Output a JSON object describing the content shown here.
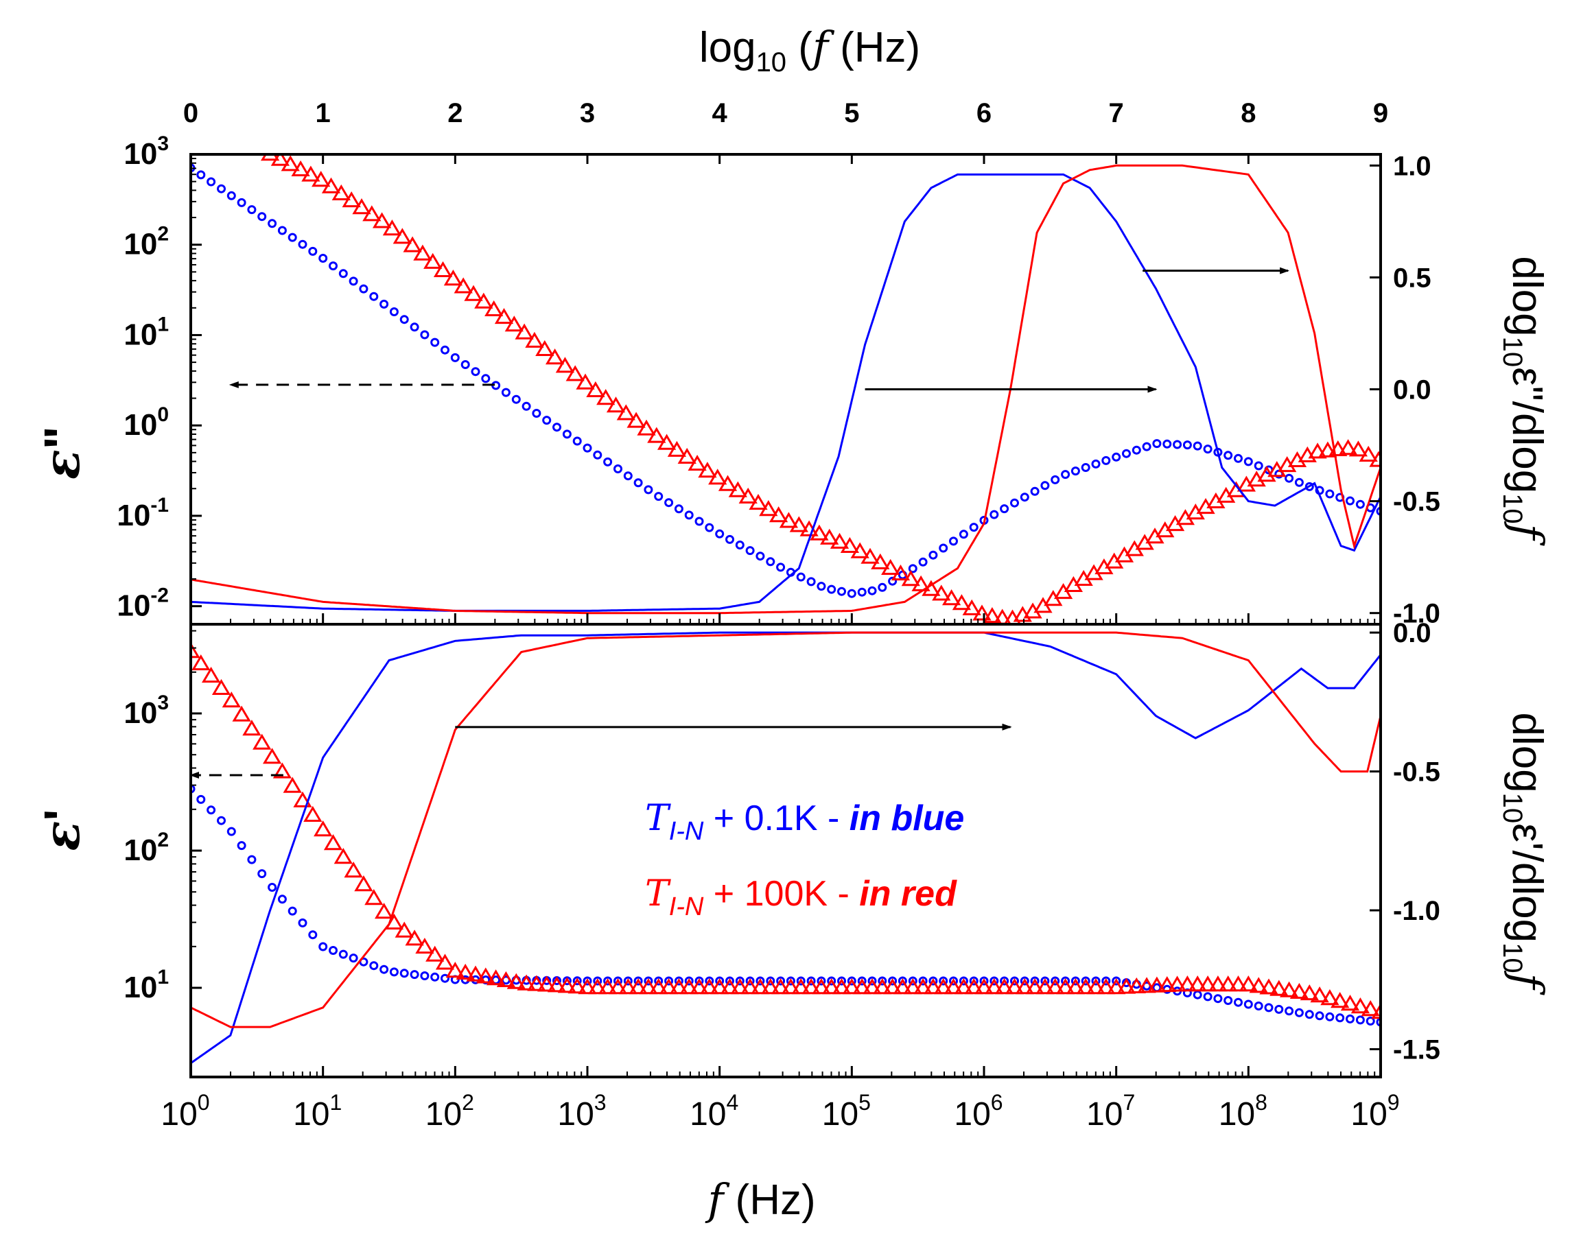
{
  "chart_data": {
    "type": "scatter",
    "colors": {
      "blue": "#0000ff",
      "red": "#ff0000",
      "axis": "#000000"
    },
    "top_axis": {
      "label_prefix": "log",
      "label_sub": "10",
      "label_paren_open": " (",
      "label_f": "f",
      "label_rest": "   (Hz)",
      "ticks": [
        "0",
        "1",
        "2",
        "3",
        "4",
        "5",
        "6",
        "7",
        "8",
        "9"
      ]
    },
    "bottom_axis": {
      "label_f": "f",
      "label_rest": "   (Hz)",
      "ticks": [
        {
          "base": "10",
          "exp": "0"
        },
        {
          "base": "10",
          "exp": "1"
        },
        {
          "base": "10",
          "exp": "2"
        },
        {
          "base": "10",
          "exp": "3"
        },
        {
          "base": "10",
          "exp": "4"
        },
        {
          "base": "10",
          "exp": "5"
        },
        {
          "base": "10",
          "exp": "6"
        },
        {
          "base": "10",
          "exp": "7"
        },
        {
          "base": "10",
          "exp": "8"
        },
        {
          "base": "10",
          "exp": "9"
        }
      ],
      "xlim_log10": [
        0,
        9
      ]
    },
    "panels": [
      {
        "name": "upper",
        "left_ylabel": "ε\"",
        "left_ylabel_symbol": "ε",
        "left_ylabel_mark": "\"",
        "left_ylim_log10": [
          -2.2,
          3.0
        ],
        "left_ticks": [
          {
            "base": "10",
            "exp": "3",
            "log": 3
          },
          {
            "base": "10",
            "exp": "2",
            "log": 2
          },
          {
            "base": "10",
            "exp": "1",
            "log": 1
          },
          {
            "base": "10",
            "exp": "0",
            "log": 0
          },
          {
            "base": "10",
            "exp": "-1",
            "log": -1
          },
          {
            "base": "10",
            "exp": "-2",
            "log": -2
          }
        ],
        "right_ylabel_parts": [
          "dlog",
          "10",
          "ε\"/dlog",
          "10",
          "f"
        ],
        "right_ylim": [
          -1.05,
          1.05
        ],
        "right_ticks": [
          "1.0",
          "0.5",
          "0.0",
          "-0.5",
          "-1.0"
        ],
        "right_tick_values": [
          1.0,
          0.5,
          0.0,
          -0.5,
          -1.0
        ]
      },
      {
        "name": "lower",
        "left_ylabel": "ε'",
        "left_ylabel_symbol": "ε",
        "left_ylabel_mark": "'",
        "left_ylim_log10": [
          0.35,
          3.65
        ],
        "left_ticks": [
          {
            "base": "10",
            "exp": "3",
            "log": 3
          },
          {
            "base": "10",
            "exp": "2",
            "log": 2
          },
          {
            "base": "10",
            "exp": "1",
            "log": 1
          }
        ],
        "right_ylabel_parts": [
          "dlog",
          "10",
          "ε'/dlog",
          "10",
          "f"
        ],
        "right_ylim": [
          -1.6,
          0.03
        ],
        "right_ticks": [
          "0.0",
          "-0.5",
          "-1.0",
          "-1.5"
        ],
        "right_tick_values": [
          0.0,
          -0.5,
          -1.0,
          -1.5
        ]
      }
    ],
    "legend": {
      "placement": "lower panel center",
      "entries": [
        {
          "color": "blue",
          "sym": "T",
          "sub": "I-N",
          "text": " + 0.1K - ",
          "emph": "in blue"
        },
        {
          "color": "red",
          "sym": "T",
          "sub": "I-N",
          "text": " + 100K - ",
          "emph": "in red"
        }
      ]
    },
    "series": [
      {
        "name": "eps2_blue",
        "panel": "upper",
        "axis": "left",
        "color": "blue",
        "marker": "circle",
        "x_log10": [
          0,
          0.5,
          1,
          1.5,
          2,
          2.5,
          3,
          3.5,
          4,
          4.5,
          4.8,
          5,
          5.2,
          5.5,
          5.8,
          6,
          6.3,
          6.6,
          7,
          7.3,
          7.6,
          8,
          8.5,
          9
        ],
        "y_log10": [
          2.85,
          2.35,
          1.85,
          1.3,
          0.75,
          0.25,
          -0.25,
          -0.75,
          -1.2,
          -1.6,
          -1.8,
          -1.86,
          -1.82,
          -1.55,
          -1.25,
          -1.05,
          -0.8,
          -0.55,
          -0.35,
          -0.2,
          -0.22,
          -0.4,
          -0.7,
          -0.95
        ]
      },
      {
        "name": "eps2_red",
        "panel": "upper",
        "axis": "left",
        "color": "red",
        "marker": "triangle",
        "x_log10": [
          0.6,
          1,
          1.5,
          2,
          2.5,
          3,
          3.5,
          4,
          4.5,
          5,
          5.5,
          5.8,
          6,
          6.2,
          6.4,
          6.7,
          7,
          7.5,
          8,
          8.5,
          8.8,
          9
        ],
        "y_log10": [
          3.0,
          2.7,
          2.2,
          1.6,
          1.05,
          0.45,
          -0.1,
          -0.6,
          -1.05,
          -1.35,
          -1.75,
          -1.95,
          -2.1,
          -2.15,
          -2.05,
          -1.75,
          -1.5,
          -1.05,
          -0.65,
          -0.3,
          -0.25,
          -0.4
        ]
      },
      {
        "name": "deriv_eps2_blue",
        "panel": "upper",
        "axis": "right",
        "color": "blue",
        "marker": "line",
        "x_log10": [
          0,
          1,
          2,
          3,
          4,
          4.3,
          4.6,
          4.9,
          5.1,
          5.4,
          5.6,
          5.8,
          6.2,
          6.6,
          6.8,
          7.0,
          7.3,
          7.6,
          7.8,
          8,
          8.2,
          8.5,
          8.7,
          8.8,
          9
        ],
        "y": [
          -0.95,
          -0.98,
          -0.99,
          -0.99,
          -0.98,
          -0.95,
          -0.8,
          -0.3,
          0.2,
          0.75,
          0.9,
          0.96,
          0.96,
          0.96,
          0.9,
          0.75,
          0.45,
          0.1,
          -0.35,
          -0.5,
          -0.52,
          -0.42,
          -0.7,
          -0.72,
          -0.48
        ]
      },
      {
        "name": "deriv_eps2_red",
        "panel": "upper",
        "axis": "right",
        "color": "red",
        "marker": "line",
        "x_log10": [
          0,
          1,
          2,
          3,
          4,
          5,
          5.4,
          5.8,
          6,
          6.2,
          6.4,
          6.6,
          6.8,
          7,
          7.5,
          8,
          8.3,
          8.5,
          8.7,
          8.8,
          9
        ],
        "y": [
          -0.85,
          -0.95,
          -0.99,
          -1.0,
          -1.0,
          -0.99,
          -0.95,
          -0.8,
          -0.6,
          0.0,
          0.7,
          0.92,
          0.98,
          1.0,
          1.0,
          0.96,
          0.7,
          0.25,
          -0.45,
          -0.7,
          -0.35
        ]
      },
      {
        "name": "eps1_blue",
        "panel": "lower",
        "axis": "left",
        "color": "blue",
        "marker": "circle",
        "x_log10": [
          0,
          0.3,
          0.6,
          1,
          1.5,
          2,
          3,
          4,
          5,
          6,
          7,
          7.5,
          8,
          8.5,
          9
        ],
        "y_log10": [
          2.45,
          2.15,
          1.75,
          1.3,
          1.12,
          1.06,
          1.05,
          1.05,
          1.05,
          1.05,
          1.05,
          0.97,
          0.88,
          0.8,
          0.75
        ]
      },
      {
        "name": "eps1_red",
        "panel": "lower",
        "axis": "left",
        "color": "red",
        "marker": "triangle",
        "x_log10": [
          0,
          0.3,
          0.6,
          1,
          1.5,
          2,
          2.5,
          3,
          4,
          5,
          6,
          7,
          7.5,
          8,
          8.5,
          9
        ],
        "y_log10": [
          3.45,
          3.1,
          2.7,
          2.15,
          1.5,
          1.12,
          1.03,
          1.0,
          1.0,
          1.0,
          1.0,
          1.0,
          1.02,
          1.02,
          0.95,
          0.82
        ]
      },
      {
        "name": "deriv_eps1_blue",
        "panel": "lower",
        "axis": "right",
        "color": "blue",
        "marker": "line",
        "x_log10": [
          0,
          0.3,
          0.6,
          1,
          1.5,
          2,
          2.5,
          3,
          4,
          5,
          6,
          6.5,
          7,
          7.3,
          7.6,
          8,
          8.4,
          8.6,
          8.8,
          9
        ],
        "y": [
          -1.55,
          -1.45,
          -1.0,
          -0.45,
          -0.1,
          -0.03,
          -0.01,
          -0.01,
          0.0,
          0.0,
          0.0,
          -0.05,
          -0.15,
          -0.3,
          -0.38,
          -0.28,
          -0.13,
          -0.2,
          -0.2,
          -0.08
        ]
      },
      {
        "name": "deriv_eps1_red",
        "panel": "lower",
        "axis": "right",
        "color": "red",
        "marker": "line",
        "x_log10": [
          0,
          0.3,
          0.6,
          1,
          1.5,
          2,
          2.5,
          3,
          4,
          5,
          6,
          7,
          7.5,
          8,
          8.3,
          8.5,
          8.7,
          8.9,
          9
        ],
        "y": [
          -1.35,
          -1.42,
          -1.42,
          -1.35,
          -1.05,
          -0.35,
          -0.07,
          -0.02,
          -0.01,
          0.0,
          0.0,
          0.0,
          -0.02,
          -0.1,
          -0.28,
          -0.4,
          -0.5,
          -0.5,
          -0.3
        ]
      }
    ],
    "arrows": [
      {
        "panel": "upper",
        "axis": "left",
        "from_x_log10": 2.3,
        "to_x_log10": 0.3,
        "y_log10": 0.45,
        "style": "dashed",
        "color": "axis"
      },
      {
        "panel": "upper",
        "axis": "right",
        "from_x_log10": 5.1,
        "to_x_log10": 7.3,
        "y": 0.0,
        "style": "solid",
        "color": "axis"
      },
      {
        "panel": "upper",
        "axis": "right",
        "from_x_log10": 7.2,
        "to_x_log10": 8.3,
        "y": 0.53,
        "style": "solid",
        "color": "axis"
      },
      {
        "panel": "lower",
        "axis": "left",
        "from_x_log10": 0.7,
        "to_x_log10": 0.0,
        "y_log10": 2.55,
        "style": "dashed",
        "color": "axis"
      },
      {
        "panel": "lower",
        "axis": "right",
        "from_x_log10": 2.0,
        "to_x_log10": 6.2,
        "y": -0.34,
        "style": "solid",
        "color": "axis"
      }
    ]
  }
}
